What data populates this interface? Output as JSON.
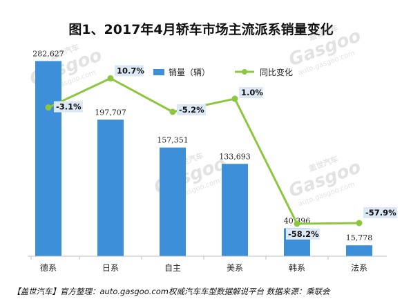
{
  "chart_data": {
    "type": "bar",
    "title": "图1、2017年4月轿车市场主流派系销量变化",
    "categories": [
      "德系",
      "日系",
      "自主",
      "美系",
      "韩系",
      "法系"
    ],
    "series": [
      {
        "name": "销量（辆）",
        "type": "bar",
        "values": [
          282627,
          197707,
          157351,
          133693,
          40396,
          15778
        ],
        "labels": [
          "282,627",
          "197,707",
          "157,351",
          "133,693",
          "40,396",
          "15,778"
        ],
        "color": "#3d8fd9"
      },
      {
        "name": "同比变化",
        "type": "line",
        "values": [
          -3.1,
          10.7,
          -5.2,
          1.0,
          -58.2,
          -57.9
        ],
        "labels": [
          "-3.1%",
          "10.7%",
          "-5.2%",
          "1.0%",
          "-58.2%",
          "-57.9%"
        ],
        "color": "#8dc63f"
      }
    ],
    "ylim_bar": [
      0,
      300000
    ],
    "ylim_line": [
      -70,
      20
    ],
    "legend_position": "top-right",
    "grid": false
  },
  "footer": {
    "source": "【盖世汽车】官方整理：auto.gasgoo.com权威汽车车型数据解说平台  数据来源：乘联会"
  },
  "watermark": {
    "brand": "Gasgoo",
    "cn": "盖世汽车",
    "url": "auto.gasgoo.com"
  }
}
